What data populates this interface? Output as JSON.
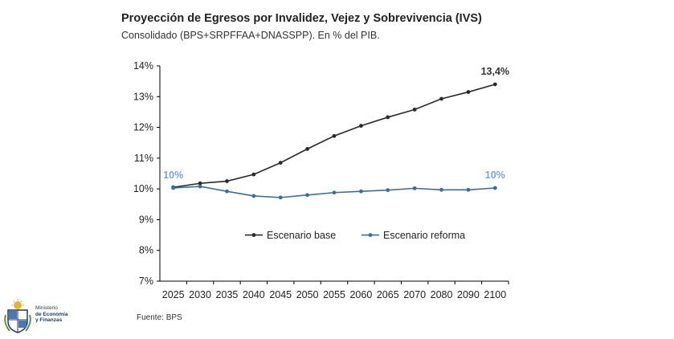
{
  "header": {
    "title": "Proyección de Egresos por Invalidez, Vejez y Sobrevivencia (IVS)",
    "subtitle": "Consolidado (BPS+SRPFFAA+DNASSPP). En % del PIB."
  },
  "footer": {
    "source": "Fuente: BPS",
    "logo_line1": "Ministerio",
    "logo_line2": "de Economía",
    "logo_line3": "y Finanzas"
  },
  "chart_data": {
    "type": "line",
    "categories": [
      "2025",
      "2030",
      "2035",
      "2040",
      "2045",
      "2050",
      "2055",
      "2060",
      "2065",
      "2070",
      "2080",
      "2090",
      "2100"
    ],
    "series": [
      {
        "name": "Escenario base",
        "color": "#2b2b2b",
        "values": [
          10.05,
          10.18,
          10.25,
          10.47,
          10.85,
          11.3,
          11.72,
          12.05,
          12.33,
          12.58,
          12.93,
          13.15,
          13.4
        ]
      },
      {
        "name": "Escenario reforma",
        "color": "#3d6e96",
        "values": [
          10.03,
          10.08,
          9.92,
          9.77,
          9.72,
          9.8,
          9.88,
          9.92,
          9.96,
          10.02,
          9.97,
          9.97,
          10.03
        ]
      }
    ],
    "ylim": [
      7,
      14
    ],
    "yticks": [
      "7%",
      "8%",
      "9%",
      "10%",
      "11%",
      "12%",
      "13%",
      "14%"
    ],
    "annotations": [
      {
        "text": "13,4%",
        "series": 0,
        "index": 12,
        "color": "#333333"
      },
      {
        "text": "10%",
        "series": 1,
        "index": 0,
        "color": "#7fa6c7"
      },
      {
        "text": "10%",
        "series": 1,
        "index": 12,
        "color": "#7fa6c7"
      }
    ],
    "legend": "center-right",
    "grid": false
  }
}
